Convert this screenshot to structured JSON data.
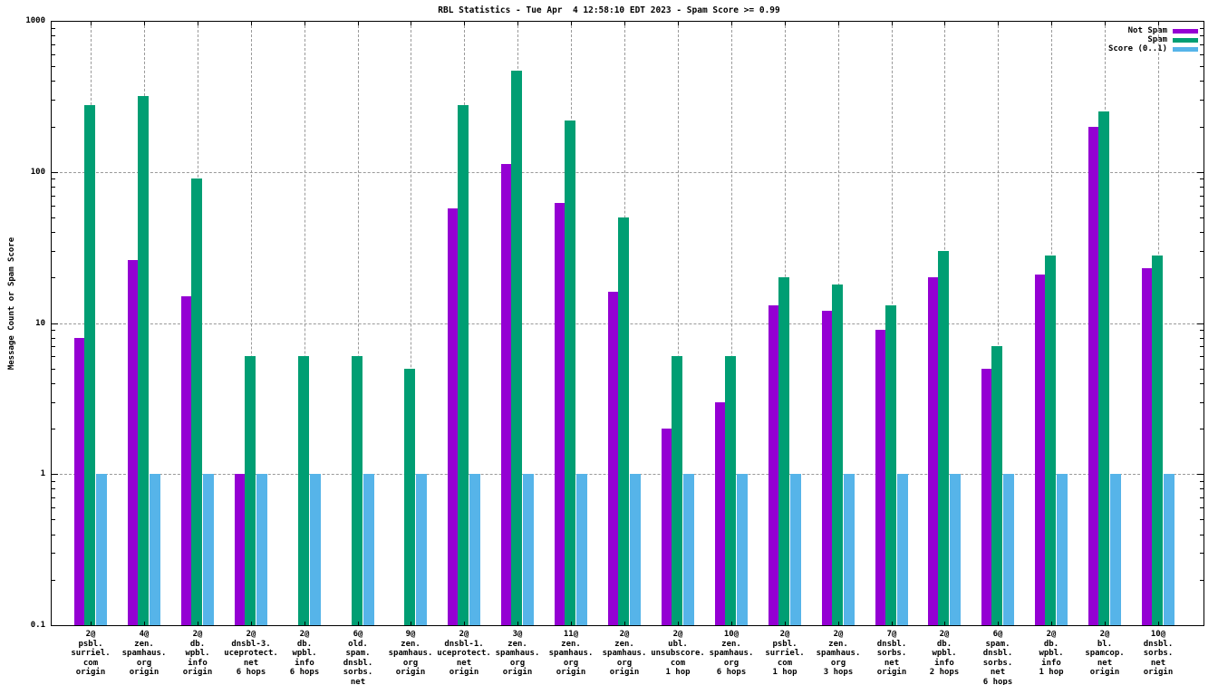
{
  "title": "RBL Statistics - Tue Apr  4 12:58:10 EDT 2023 - Spam Score >= 0.99",
  "chart_data": {
    "type": "bar",
    "title": "RBL Statistics - Tue Apr  4 12:58:10 EDT 2023 - Spam Score >= 0.99",
    "ylabel": "Message Count or Spam Score",
    "xlabel": "",
    "yscale": "log",
    "ylim": [
      0.1,
      1000
    ],
    "ytick_labels": [
      "1000",
      "100",
      "10",
      "1",
      "0.1"
    ],
    "ytick_values": [
      1000,
      100,
      10,
      1,
      0.1
    ],
    "grid": true,
    "legend_position": "top-right-inside",
    "categories": [
      [
        "2@",
        "psbl.",
        "surriel.",
        "com",
        "origin"
      ],
      [
        "4@",
        "zen.",
        "spamhaus.",
        "org",
        "origin"
      ],
      [
        "2@",
        "db.",
        "wpbl.",
        "info",
        "origin"
      ],
      [
        "2@",
        "dnsbl-3.",
        "uceprotect.",
        "net",
        "6 hops"
      ],
      [
        "2@",
        "db.",
        "wpbl.",
        "info",
        "6 hops"
      ],
      [
        "6@",
        "old.",
        "spam.",
        "dnsbl.",
        "sorbs.",
        "net",
        "6 hops"
      ],
      [
        "9@",
        "zen.",
        "spamhaus.",
        "org",
        "origin"
      ],
      [
        "2@",
        "dnsbl-1.",
        "uceprotect.",
        "net",
        "origin"
      ],
      [
        "3@",
        "zen.",
        "spamhaus.",
        "org",
        "origin"
      ],
      [
        "11@",
        "zen.",
        "spamhaus.",
        "org",
        "origin"
      ],
      [
        "2@",
        "zen.",
        "spamhaus.",
        "org",
        "origin"
      ],
      [
        "2@",
        "ubl.",
        "unsubscore.",
        "com",
        "1 hop"
      ],
      [
        "10@",
        "zen.",
        "spamhaus.",
        "org",
        "6 hops"
      ],
      [
        "2@",
        "psbl.",
        "surriel.",
        "com",
        "1 hop"
      ],
      [
        "2@",
        "zen.",
        "spamhaus.",
        "org",
        "3 hops"
      ],
      [
        "7@",
        "dnsbl.",
        "sorbs.",
        "net",
        "origin"
      ],
      [
        "2@",
        "db.",
        "wpbl.",
        "info",
        "2 hops"
      ],
      [
        "6@",
        "spam.",
        "dnsbl.",
        "sorbs.",
        "net",
        "6 hops"
      ],
      [
        "2@",
        "db.",
        "wpbl.",
        "info",
        "1 hop"
      ],
      [
        "2@",
        "bl.",
        "spamcop.",
        "net",
        "origin"
      ],
      [
        "10@",
        "dnsbl.",
        "sorbs.",
        "net",
        "origin"
      ]
    ],
    "series": [
      {
        "name": "Not Spam",
        "color": "#9400d3",
        "values": [
          8,
          26,
          15,
          1,
          null,
          null,
          null,
          57,
          113,
          62,
          16,
          2,
          3,
          13,
          12,
          9,
          20,
          5,
          21,
          200,
          23
        ]
      },
      {
        "name": "Spam",
        "color": "#009e73",
        "values": [
          275,
          320,
          90,
          6,
          6,
          6,
          5,
          275,
          470,
          220,
          50,
          6,
          6,
          20,
          18,
          13,
          30,
          7,
          28,
          250,
          28
        ]
      },
      {
        "name": "Score (0..1)",
        "color": "#56b4e9",
        "values": [
          1,
          1,
          1,
          1,
          1,
          1,
          1,
          1,
          1,
          1,
          1,
          1,
          1,
          1,
          1,
          1,
          1,
          1,
          1,
          1,
          1
        ]
      }
    ]
  },
  "colors": {
    "axis": "#000000",
    "grid": "#9a9a9a",
    "background": "#ffffff"
  }
}
